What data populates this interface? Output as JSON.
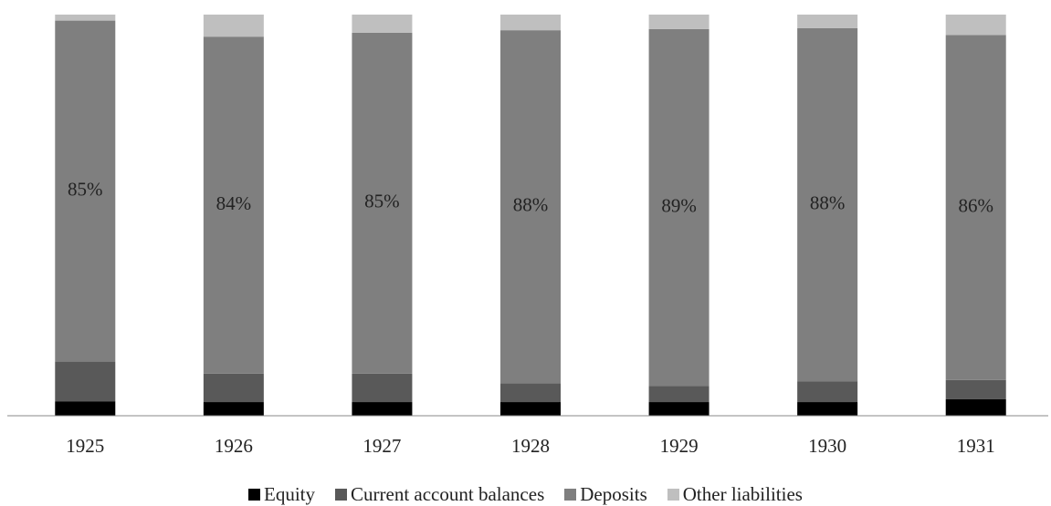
{
  "chart_data": {
    "type": "stacked_bar",
    "categories": [
      "1925",
      "1926",
      "1927",
      "1928",
      "1929",
      "1930",
      "1931"
    ],
    "series": [
      {
        "name": "Equity",
        "color": "#000000",
        "values": [
          3.6,
          3.4,
          3.4,
          3.4,
          3.4,
          3.4,
          4.1
        ]
      },
      {
        "name": "Current account balances",
        "color": "#595959",
        "values": [
          9.9,
          7.1,
          7.1,
          4.7,
          4.0,
          5.2,
          4.8
        ]
      },
      {
        "name": "Deposits",
        "color": "#7f7f7f",
        "values": [
          85,
          84,
          85,
          88,
          89,
          88,
          86
        ],
        "value_labels": [
          "85%",
          "84%",
          "85%",
          "88%",
          "89%",
          "88%",
          "86%"
        ]
      },
      {
        "name": "Other liabilities",
        "color": "#bfbfbf",
        "values": [
          1.5,
          5.5,
          4.5,
          3.9,
          3.6,
          3.4,
          5.1
        ]
      }
    ],
    "ylim": [
      0,
      100
    ]
  }
}
